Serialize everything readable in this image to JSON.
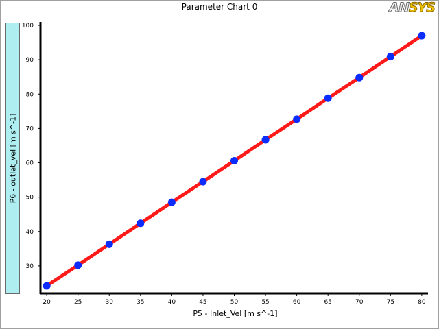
{
  "window": {
    "title": "Parameter Chart 0",
    "logo_text_main": "AN",
    "logo_text_accent": "SYS"
  },
  "colors": {
    "line": "#ff1a1a",
    "marker": "#0a2cff",
    "ylabel_bg": "#aeeef0"
  },
  "chart_data": {
    "type": "line",
    "title": "Parameter Chart 0",
    "xlabel": "P5 - Inlet_Vel  [m s^-1]",
    "ylabel": "P6 - outlet_vel  [m s^-1]",
    "xlim": [
      19,
      81
    ],
    "ylim": [
      22,
      101
    ],
    "xticks": [
      20,
      25,
      30,
      35,
      40,
      45,
      50,
      55,
      60,
      65,
      70,
      75,
      80
    ],
    "yticks": [
      30,
      40,
      50,
      60,
      70,
      80,
      90,
      100
    ],
    "grid": false,
    "series": [
      {
        "x": [
          20,
          25,
          30,
          35,
          40,
          45,
          50,
          55,
          60,
          65,
          70,
          75,
          80
        ],
        "y": [
          24.2,
          30.2,
          36.3,
          42.4,
          48.5,
          54.5,
          60.6,
          66.7,
          72.7,
          78.8,
          84.8,
          90.9,
          97.0
        ]
      }
    ]
  }
}
